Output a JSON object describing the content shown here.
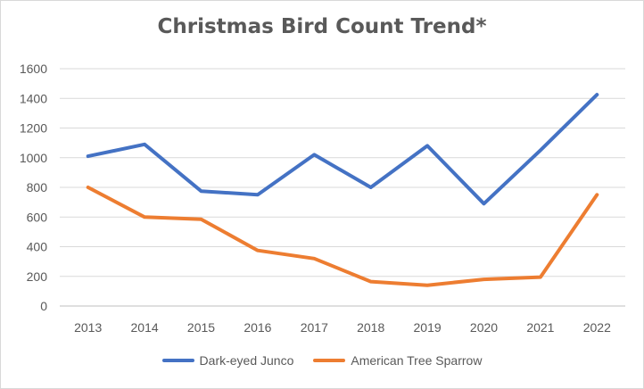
{
  "chart_data": {
    "type": "line",
    "title": "Christmas Bird Count Trend*",
    "xlabel": "",
    "ylabel": "",
    "categories": [
      "2013",
      "2014",
      "2015",
      "2016",
      "2017",
      "2018",
      "2019",
      "2020",
      "2021",
      "2022"
    ],
    "ylim": [
      0,
      1600
    ],
    "yticks": [
      "0",
      "200",
      "400",
      "600",
      "800",
      "1000",
      "1200",
      "1400",
      "1600"
    ],
    "grid": true,
    "legend_position": "bottom",
    "series": [
      {
        "name": "Dark-eyed Junco",
        "color": "#4472c4",
        "values": [
          1010,
          1090,
          775,
          750,
          1020,
          800,
          1080,
          690,
          1050,
          1425
        ]
      },
      {
        "name": "American Tree Sparrow",
        "color": "#ed7d31",
        "values": [
          800,
          600,
          585,
          375,
          320,
          165,
          140,
          180,
          195,
          750
        ]
      }
    ]
  }
}
